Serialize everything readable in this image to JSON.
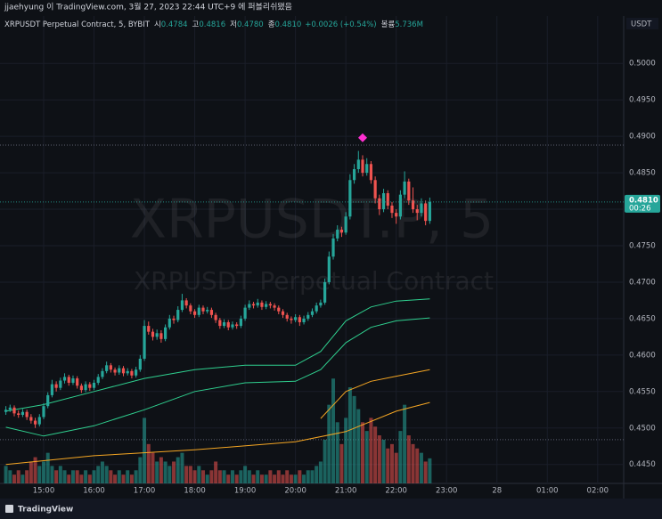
{
  "header": "jjaehyung 이 TradingView.com, 3월 27, 2023 22:44 UTC+9 에 퍼블리쉬됐음",
  "footer": "TradingView",
  "chart_data": {
    "type": "candlestick",
    "symbol": "XRPUSDT Perpetual Contract, 5, BYBIT",
    "legend": [
      {
        "label": "시",
        "value": "0.4784"
      },
      {
        "label": "고",
        "value": "0.4816"
      },
      {
        "label": "저",
        "value": "0.4780"
      },
      {
        "label": "종",
        "value": "0.4810"
      }
    ],
    "change": "+0.0026 (+0.54%)",
    "volume_label": "볼륨",
    "volume_value": "5.736M",
    "watermark": "XRPUSDT.P, 5",
    "watermark_sub": "XRPUSDT Perpetual Contract",
    "currency": "USDT",
    "last_price_label": "0.4810",
    "countdown": "00:26",
    "up_color": "#26a69a",
    "down_color": "#ef5350",
    "grid": true,
    "xlim": [
      848,
      1591
    ],
    "ylim": [
      0.4424,
      0.5065
    ],
    "volume_ylim": [
      0,
      107
    ],
    "xticks": [
      {
        "value": 900,
        "label": "15:00"
      },
      {
        "value": 960,
        "label": "16:00"
      },
      {
        "value": 1020,
        "label": "17:00"
      },
      {
        "value": 1080,
        "label": "18:00"
      },
      {
        "value": 1140,
        "label": "19:00"
      },
      {
        "value": 1200,
        "label": "20:00"
      },
      {
        "value": 1260,
        "label": "21:00"
      },
      {
        "value": 1320,
        "label": "22:00"
      },
      {
        "value": 1380,
        "label": "23:00"
      },
      {
        "value": 1440,
        "label": "28"
      },
      {
        "value": 1500,
        "label": "01:00"
      },
      {
        "value": 1560,
        "label": "02:00"
      }
    ],
    "yticks": [
      {
        "value": 0.445,
        "label": "0.4450"
      },
      {
        "value": 0.45,
        "label": "0.4500"
      },
      {
        "value": 0.455,
        "label": "0.4550"
      },
      {
        "value": 0.46,
        "label": "0.4600"
      },
      {
        "value": 0.465,
        "label": "0.4650"
      },
      {
        "value": 0.47,
        "label": "0.4700"
      },
      {
        "value": 0.475,
        "label": "0.4750"
      },
      {
        "value": 0.48,
        "label": "0.4800"
      },
      {
        "value": 0.485,
        "label": "0.4850"
      },
      {
        "value": 0.49,
        "label": "0.4900"
      },
      {
        "value": 0.495,
        "label": "0.4950"
      },
      {
        "value": 0.5,
        "label": "0.5000"
      }
    ],
    "x": [
      855,
      860,
      865,
      870,
      875,
      880,
      885,
      890,
      895,
      900,
      905,
      910,
      915,
      920,
      925,
      930,
      935,
      940,
      945,
      950,
      955,
      960,
      965,
      970,
      975,
      980,
      985,
      990,
      995,
      1000,
      1005,
      1010,
      1015,
      1020,
      1025,
      1030,
      1035,
      1040,
      1045,
      1050,
      1055,
      1060,
      1065,
      1070,
      1075,
      1080,
      1085,
      1090,
      1095,
      1100,
      1105,
      1110,
      1115,
      1120,
      1125,
      1130,
      1135,
      1140,
      1145,
      1150,
      1155,
      1160,
      1165,
      1170,
      1175,
      1180,
      1185,
      1190,
      1195,
      1200,
      1205,
      1210,
      1215,
      1220,
      1225,
      1230,
      1235,
      1240,
      1245,
      1250,
      1255,
      1260,
      1265,
      1270,
      1275,
      1280,
      1285,
      1290,
      1295,
      1300,
      1305,
      1310,
      1315,
      1320,
      1325,
      1330,
      1335,
      1340,
      1345,
      1350,
      1355,
      1360
    ],
    "candles": [
      [
        0.4522,
        0.453,
        0.4518,
        0.4525
      ],
      [
        0.4525,
        0.4532,
        0.4522,
        0.4528
      ],
      [
        0.4528,
        0.4531,
        0.4516,
        0.452
      ],
      [
        0.452,
        0.4524,
        0.4514,
        0.4518
      ],
      [
        0.4518,
        0.4526,
        0.4515,
        0.4522
      ],
      [
        0.4522,
        0.4525,
        0.4511,
        0.4515
      ],
      [
        0.4515,
        0.4519,
        0.4506,
        0.451
      ],
      [
        0.451,
        0.4514,
        0.45,
        0.4505
      ],
      [
        0.4505,
        0.4519,
        0.4502,
        0.4515
      ],
      [
        0.4515,
        0.4534,
        0.4512,
        0.453
      ],
      [
        0.453,
        0.4549,
        0.4527,
        0.4545
      ],
      [
        0.4545,
        0.4566,
        0.4542,
        0.456
      ],
      [
        0.456,
        0.4564,
        0.455,
        0.4555
      ],
      [
        0.4555,
        0.4569,
        0.4552,
        0.4565
      ],
      [
        0.4565,
        0.4575,
        0.4561,
        0.457
      ],
      [
        0.457,
        0.4573,
        0.4558,
        0.4562
      ],
      [
        0.4562,
        0.4572,
        0.4559,
        0.4568
      ],
      [
        0.4568,
        0.4571,
        0.4554,
        0.4558
      ],
      [
        0.4558,
        0.4561,
        0.4548,
        0.4552
      ],
      [
        0.4552,
        0.4564,
        0.4549,
        0.456
      ],
      [
        0.456,
        0.4563,
        0.4551,
        0.4555
      ],
      [
        0.4555,
        0.4566,
        0.4552,
        0.4562
      ],
      [
        0.4562,
        0.4574,
        0.4559,
        0.457
      ],
      [
        0.457,
        0.4582,
        0.4567,
        0.4578
      ],
      [
        0.4578,
        0.4591,
        0.4575,
        0.4586
      ],
      [
        0.4586,
        0.4589,
        0.4576,
        0.458
      ],
      [
        0.458,
        0.4583,
        0.4572,
        0.4576
      ],
      [
        0.4576,
        0.4586,
        0.4573,
        0.4582
      ],
      [
        0.4582,
        0.4585,
        0.4571,
        0.4575
      ],
      [
        0.4575,
        0.4582,
        0.4572,
        0.4578
      ],
      [
        0.4578,
        0.4581,
        0.4568,
        0.4572
      ],
      [
        0.4572,
        0.4584,
        0.4569,
        0.458
      ],
      [
        0.458,
        0.46,
        0.4577,
        0.4595
      ],
      [
        0.4595,
        0.4648,
        0.4592,
        0.464
      ],
      [
        0.464,
        0.4646,
        0.4628,
        0.4632
      ],
      [
        0.4632,
        0.4636,
        0.462,
        0.4625
      ],
      [
        0.4625,
        0.4635,
        0.4621,
        0.463
      ],
      [
        0.463,
        0.4634,
        0.4617,
        0.4622
      ],
      [
        0.4622,
        0.4642,
        0.4619,
        0.4638
      ],
      [
        0.4638,
        0.4655,
        0.4635,
        0.465
      ],
      [
        0.465,
        0.4654,
        0.4643,
        0.4648
      ],
      [
        0.4648,
        0.4667,
        0.4645,
        0.4662
      ],
      [
        0.4662,
        0.4684,
        0.4659,
        0.4675
      ],
      [
        0.4675,
        0.4678,
        0.4664,
        0.4668
      ],
      [
        0.4668,
        0.4671,
        0.4656,
        0.466
      ],
      [
        0.466,
        0.4663,
        0.4651,
        0.4655
      ],
      [
        0.4655,
        0.4669,
        0.4652,
        0.4665
      ],
      [
        0.4665,
        0.4668,
        0.4656,
        0.466
      ],
      [
        0.466,
        0.4666,
        0.4657,
        0.4662
      ],
      [
        0.4662,
        0.4665,
        0.4651,
        0.4655
      ],
      [
        0.4655,
        0.4658,
        0.4644,
        0.4648
      ],
      [
        0.4648,
        0.4651,
        0.4636,
        0.464
      ],
      [
        0.464,
        0.4649,
        0.4637,
        0.4645
      ],
      [
        0.4645,
        0.4648,
        0.4634,
        0.4638
      ],
      [
        0.4638,
        0.4646,
        0.4635,
        0.4642
      ],
      [
        0.4642,
        0.4645,
        0.4636,
        0.464
      ],
      [
        0.464,
        0.4654,
        0.4637,
        0.465
      ],
      [
        0.465,
        0.4669,
        0.4647,
        0.4665
      ],
      [
        0.4665,
        0.4675,
        0.4662,
        0.467
      ],
      [
        0.467,
        0.4673,
        0.4664,
        0.4668
      ],
      [
        0.4668,
        0.4677,
        0.4665,
        0.4672
      ],
      [
        0.4672,
        0.4675,
        0.4662,
        0.4666
      ],
      [
        0.4666,
        0.4674,
        0.4663,
        0.467
      ],
      [
        0.467,
        0.4673,
        0.4664,
        0.4668
      ],
      [
        0.4668,
        0.4671,
        0.4661,
        0.4665
      ],
      [
        0.4665,
        0.4668,
        0.4656,
        0.466
      ],
      [
        0.466,
        0.4663,
        0.4651,
        0.4655
      ],
      [
        0.4655,
        0.4658,
        0.4646,
        0.465
      ],
      [
        0.465,
        0.4653,
        0.4643,
        0.4648
      ],
      [
        0.4648,
        0.4656,
        0.4645,
        0.4652
      ],
      [
        0.4652,
        0.4655,
        0.464,
        0.4645
      ],
      [
        0.4645,
        0.4654,
        0.4642,
        0.465
      ],
      [
        0.465,
        0.4659,
        0.4647,
        0.4655
      ],
      [
        0.4655,
        0.4664,
        0.4652,
        0.466
      ],
      [
        0.466,
        0.4672,
        0.4657,
        0.4668
      ],
      [
        0.4668,
        0.4676,
        0.4665,
        0.4672
      ],
      [
        0.4672,
        0.4705,
        0.4669,
        0.47
      ],
      [
        0.47,
        0.4742,
        0.4697,
        0.4735
      ],
      [
        0.4735,
        0.4766,
        0.4731,
        0.476
      ],
      [
        0.476,
        0.4778,
        0.4756,
        0.4772
      ],
      [
        0.4772,
        0.4776,
        0.4762,
        0.4768
      ],
      [
        0.4768,
        0.4796,
        0.4765,
        0.479
      ],
      [
        0.479,
        0.4848,
        0.4786,
        0.484
      ],
      [
        0.484,
        0.4862,
        0.4835,
        0.4855
      ],
      [
        0.4855,
        0.488,
        0.485,
        0.4868
      ],
      [
        0.4868,
        0.4874,
        0.4845,
        0.485
      ],
      [
        0.485,
        0.487,
        0.4846,
        0.4862
      ],
      [
        0.4862,
        0.4866,
        0.4835,
        0.484
      ],
      [
        0.484,
        0.4845,
        0.4808,
        0.4815
      ],
      [
        0.4815,
        0.482,
        0.4792,
        0.48
      ],
      [
        0.48,
        0.4828,
        0.4796,
        0.4822
      ],
      [
        0.4822,
        0.4826,
        0.48,
        0.4805
      ],
      [
        0.4805,
        0.481,
        0.4788,
        0.4795
      ],
      [
        0.4795,
        0.48,
        0.478,
        0.479
      ],
      [
        0.479,
        0.4826,
        0.4786,
        0.482
      ],
      [
        0.482,
        0.4852,
        0.4815,
        0.4838
      ],
      [
        0.4838,
        0.4842,
        0.4806,
        0.4812
      ],
      [
        0.4812,
        0.483,
        0.4795,
        0.48
      ],
      [
        0.48,
        0.4806,
        0.4785,
        0.4795
      ],
      [
        0.4795,
        0.4815,
        0.479,
        0.4808
      ],
      [
        0.4808,
        0.4812,
        0.4778,
        0.4784
      ],
      [
        0.4784,
        0.4816,
        0.478,
        0.481
      ]
    ],
    "volume": [
      4,
      3,
      2,
      3,
      2,
      3,
      5,
      6,
      4,
      5,
      7,
      4,
      3,
      4,
      3,
      2,
      3,
      3,
      2,
      3,
      2,
      3,
      4,
      5,
      4,
      3,
      2,
      3,
      2,
      3,
      2,
      3,
      6,
      15,
      9,
      7,
      5,
      6,
      5,
      4,
      5,
      6,
      7,
      4,
      4,
      3,
      4,
      3,
      2,
      3,
      5,
      3,
      3,
      2,
      3,
      2,
      3,
      4,
      3,
      2,
      3,
      2,
      2,
      3,
      2,
      3,
      2,
      3,
      2,
      2,
      3,
      2,
      3,
      3,
      4,
      5,
      10,
      18,
      24,
      14,
      9,
      15,
      22,
      20,
      17,
      14,
      12,
      15,
      13,
      11,
      10,
      8,
      9,
      7,
      12,
      18,
      11,
      9,
      8,
      7,
      5,
      5.736
    ],
    "bands": [
      {
        "color": "#2fd08f",
        "x": [
          855,
          900,
          960,
          1020,
          1080,
          1140,
          1200,
          1230,
          1260,
          1290,
          1320,
          1360
        ],
        "values": [
          0.4523,
          0.4532,
          0.455,
          0.4568,
          0.458,
          0.4586,
          0.4586,
          0.4605,
          0.4647,
          0.4666,
          0.4674,
          0.4677
        ]
      },
      {
        "color": "#2fd08f",
        "x": [
          855,
          900,
          960,
          1020,
          1080,
          1140,
          1200,
          1230,
          1260,
          1290,
          1320,
          1360
        ],
        "values": [
          0.4501,
          0.4489,
          0.4503,
          0.4525,
          0.455,
          0.4562,
          0.4564,
          0.458,
          0.4617,
          0.4638,
          0.4647,
          0.4651
        ]
      },
      {
        "color": "#f5a623",
        "x": [
          1230,
          1260,
          1290,
          1320,
          1360
        ],
        "values": [
          0.4513,
          0.455,
          0.4564,
          0.4571,
          0.458
        ]
      },
      {
        "color": "#f5a623",
        "x": [
          855,
          960,
          1080,
          1200,
          1260,
          1320,
          1360
        ],
        "values": [
          0.445,
          0.4462,
          0.447,
          0.4481,
          0.4495,
          0.4523,
          0.4535
        ]
      }
    ],
    "hlines": [
      {
        "value": 0.4888,
        "color": "#5d6170"
      },
      {
        "value": 0.4484,
        "color": "#5d6170"
      }
    ],
    "markers": [
      {
        "x": 1280,
        "y": 0.4898,
        "color": "#ff2fd0"
      }
    ]
  }
}
